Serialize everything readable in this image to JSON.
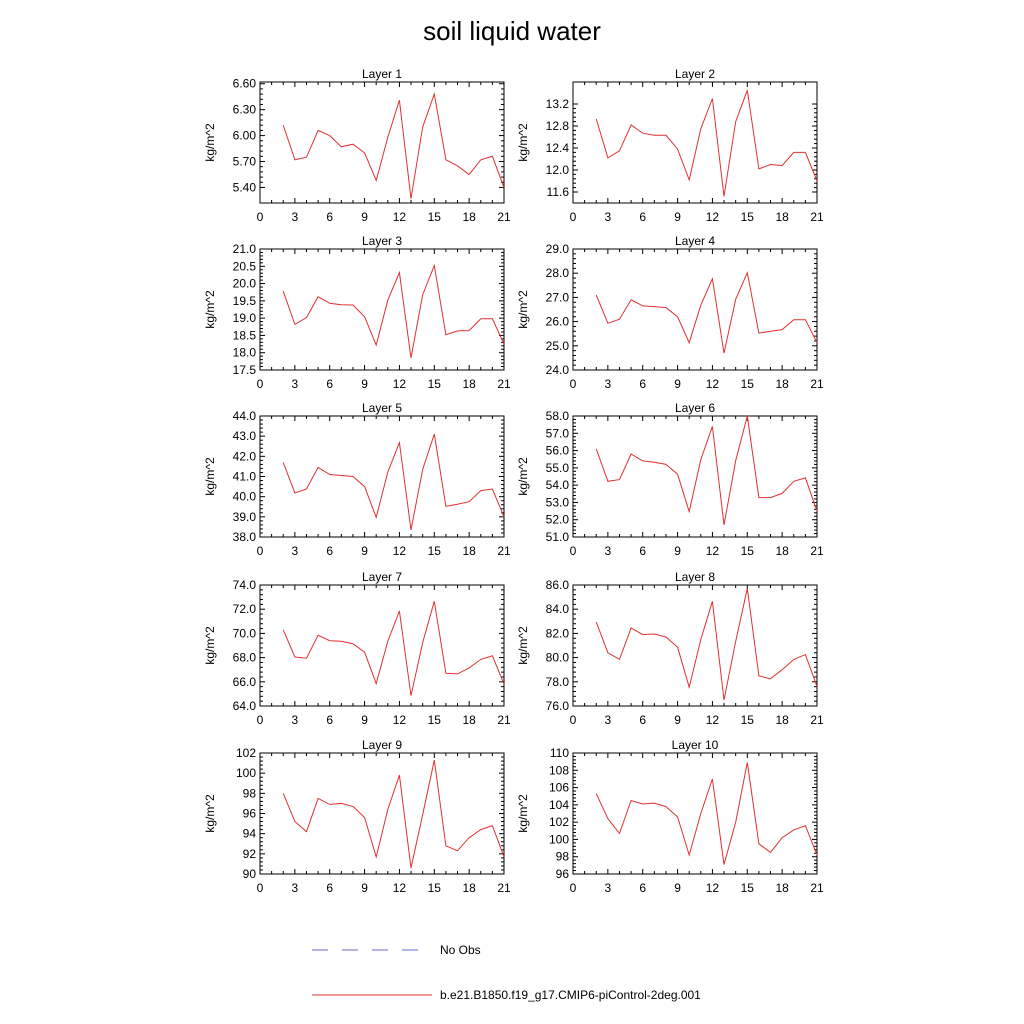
{
  "title": "soil liquid water",
  "legend": [
    {
      "label": "No Obs",
      "color": "#6b6bc8",
      "style": "dashed"
    },
    {
      "label": "b.e21.B1850.f19_g17.CMIP6-piControl-2deg.001",
      "color": "#e03030",
      "style": "solid"
    }
  ],
  "chart_data": [
    {
      "type": "line",
      "title": "Layer 1",
      "ylabel": "kg/m^2",
      "xlim": [
        0,
        21
      ],
      "xticks": [
        0,
        3,
        6,
        9,
        12,
        15,
        18,
        21
      ],
      "ylim": [
        5.22,
        6.62
      ],
      "yticks": [
        5.4,
        5.7,
        6.0,
        6.3,
        6.6
      ],
      "ydec": 2,
      "series": [
        {
          "x": [
            2,
            3,
            4,
            5,
            6,
            7,
            8,
            9,
            10,
            11,
            12,
            13,
            14,
            15,
            16,
            17,
            18,
            19,
            20,
            21
          ],
          "y": [
            6.12,
            5.72,
            5.75,
            6.06,
            6.0,
            5.87,
            5.9,
            5.8,
            5.48,
            5.98,
            6.41,
            5.27,
            6.1,
            6.48,
            5.72,
            5.65,
            5.55,
            5.72,
            5.76,
            5.4
          ]
        }
      ]
    },
    {
      "type": "line",
      "title": "Layer 2",
      "ylabel": "kg/m^2",
      "xlim": [
        0,
        21
      ],
      "xticks": [
        0,
        3,
        6,
        9,
        12,
        15,
        18,
        21
      ],
      "ylim": [
        11.4,
        13.6
      ],
      "yticks": [
        11.6,
        12.0,
        12.4,
        12.8,
        13.2
      ],
      "ydec": 1,
      "series": [
        {
          "x": [
            2,
            3,
            4,
            5,
            6,
            7,
            8,
            9,
            10,
            11,
            12,
            13,
            14,
            15,
            16,
            17,
            18,
            19,
            20,
            21
          ],
          "y": [
            12.93,
            12.22,
            12.35,
            12.82,
            12.67,
            12.63,
            12.63,
            12.38,
            11.82,
            12.75,
            13.3,
            11.52,
            12.88,
            13.45,
            12.02,
            12.1,
            12.08,
            12.32,
            12.32,
            11.8
          ]
        }
      ]
    },
    {
      "type": "line",
      "title": "Layer 3",
      "ylabel": "kg/m^2",
      "xlim": [
        0,
        21
      ],
      "xticks": [
        0,
        3,
        6,
        9,
        12,
        15,
        18,
        21
      ],
      "ylim": [
        17.5,
        21.0
      ],
      "yticks": [
        17.5,
        18.0,
        18.5,
        19.0,
        19.5,
        20.0,
        20.5,
        21.0
      ],
      "ydec": 1,
      "series": [
        {
          "x": [
            2,
            3,
            4,
            5,
            6,
            7,
            8,
            9,
            10,
            11,
            12,
            13,
            14,
            15,
            16,
            17,
            18,
            19,
            20,
            21
          ],
          "y": [
            19.78,
            18.82,
            19.02,
            19.62,
            19.43,
            19.39,
            19.38,
            19.04,
            18.22,
            19.52,
            20.32,
            17.85,
            19.68,
            20.52,
            18.52,
            18.63,
            18.64,
            18.98,
            18.98,
            18.25
          ]
        }
      ]
    },
    {
      "type": "line",
      "title": "Layer 4",
      "ylabel": "kg/m^2",
      "xlim": [
        0,
        21
      ],
      "xticks": [
        0,
        3,
        6,
        9,
        12,
        15,
        18,
        21
      ],
      "ylim": [
        24.0,
        29.0
      ],
      "yticks": [
        24.0,
        25.0,
        26.0,
        27.0,
        28.0,
        29.0
      ],
      "ydec": 1,
      "series": [
        {
          "x": [
            2,
            3,
            4,
            5,
            6,
            7,
            8,
            9,
            10,
            11,
            12,
            13,
            14,
            15,
            16,
            17,
            18,
            19,
            20,
            21
          ],
          "y": [
            27.1,
            25.93,
            26.1,
            26.9,
            26.65,
            26.62,
            26.58,
            26.2,
            25.13,
            26.68,
            27.77,
            24.7,
            26.92,
            28.02,
            25.52,
            25.6,
            25.67,
            26.08,
            26.08,
            25.13
          ]
        }
      ]
    },
    {
      "type": "line",
      "title": "Layer 5",
      "ylabel": "kg/m^2",
      "xlim": [
        0,
        21
      ],
      "xticks": [
        0,
        3,
        6,
        9,
        12,
        15,
        18,
        21
      ],
      "ylim": [
        38.0,
        44.0
      ],
      "yticks": [
        38.0,
        39.0,
        40.0,
        41.0,
        42.0,
        43.0,
        44.0
      ],
      "ydec": 1,
      "series": [
        {
          "x": [
            2,
            3,
            4,
            5,
            6,
            7,
            8,
            9,
            10,
            11,
            12,
            13,
            14,
            15,
            16,
            17,
            18,
            19,
            20,
            21
          ],
          "y": [
            41.7,
            40.18,
            40.38,
            41.45,
            41.1,
            41.05,
            41.0,
            40.5,
            38.97,
            41.22,
            42.68,
            38.35,
            41.35,
            43.1,
            39.52,
            39.62,
            39.75,
            40.3,
            40.38,
            39.0
          ]
        }
      ]
    },
    {
      "type": "line",
      "title": "Layer 6",
      "ylabel": "kg/m^2",
      "xlim": [
        0,
        21
      ],
      "xticks": [
        0,
        3,
        6,
        9,
        12,
        15,
        18,
        21
      ],
      "ylim": [
        51.0,
        58.0
      ],
      "yticks": [
        51.0,
        52.0,
        53.0,
        54.0,
        55.0,
        56.0,
        57.0,
        58.0
      ],
      "ydec": 1,
      "series": [
        {
          "x": [
            2,
            3,
            4,
            5,
            6,
            7,
            8,
            9,
            10,
            11,
            12,
            13,
            14,
            15,
            16,
            17,
            18,
            19,
            20,
            21
          ],
          "y": [
            56.1,
            54.22,
            54.32,
            55.8,
            55.4,
            55.32,
            55.2,
            54.63,
            52.47,
            55.48,
            57.4,
            51.7,
            55.42,
            58.0,
            53.28,
            53.28,
            53.52,
            54.22,
            54.42,
            52.5
          ]
        }
      ]
    },
    {
      "type": "line",
      "title": "Layer 7",
      "ylabel": "kg/m^2",
      "xlim": [
        0,
        21
      ],
      "xticks": [
        0,
        3,
        6,
        9,
        12,
        15,
        18,
        21
      ],
      "ylim": [
        64.0,
        74.0
      ],
      "yticks": [
        64.0,
        66.0,
        68.0,
        70.0,
        72.0,
        74.0
      ],
      "ydec": 1,
      "series": [
        {
          "x": [
            2,
            3,
            4,
            5,
            6,
            7,
            8,
            9,
            10,
            11,
            12,
            13,
            14,
            15,
            16,
            17,
            18,
            19,
            20,
            21
          ],
          "y": [
            70.3,
            68.05,
            67.95,
            69.85,
            69.4,
            69.35,
            69.15,
            68.45,
            65.85,
            69.35,
            71.85,
            64.85,
            69.25,
            72.65,
            66.7,
            66.65,
            67.15,
            67.85,
            68.15,
            65.8
          ]
        }
      ]
    },
    {
      "type": "line",
      "title": "Layer 8",
      "ylabel": "kg/m^2",
      "xlim": [
        0,
        21
      ],
      "xticks": [
        0,
        3,
        6,
        9,
        12,
        15,
        18,
        21
      ],
      "ylim": [
        76.0,
        86.0
      ],
      "yticks": [
        76.0,
        78.0,
        80.0,
        82.0,
        84.0,
        86.0
      ],
      "ydec": 1,
      "series": [
        {
          "x": [
            2,
            3,
            4,
            5,
            6,
            7,
            8,
            9,
            10,
            11,
            12,
            13,
            14,
            15,
            16,
            17,
            18,
            19,
            20,
            21
          ],
          "y": [
            82.95,
            80.4,
            79.85,
            82.45,
            81.9,
            81.95,
            81.7,
            80.85,
            77.55,
            81.5,
            84.65,
            76.5,
            81.35,
            85.7,
            78.5,
            78.25,
            79.0,
            79.85,
            80.25,
            77.6
          ]
        }
      ]
    },
    {
      "type": "line",
      "title": "Layer 9",
      "ylabel": "kg/m^2",
      "xlim": [
        0,
        21
      ],
      "xticks": [
        0,
        3,
        6,
        9,
        12,
        15,
        18,
        21
      ],
      "ylim": [
        90,
        102
      ],
      "yticks": [
        90,
        92,
        94,
        96,
        98,
        100,
        102
      ],
      "ydec": 0,
      "series": [
        {
          "x": [
            2,
            3,
            4,
            5,
            6,
            7,
            8,
            9,
            10,
            11,
            12,
            13,
            14,
            15,
            16,
            17,
            18,
            19,
            20,
            21
          ],
          "y": [
            98.0,
            95.2,
            94.2,
            97.5,
            96.9,
            97.0,
            96.7,
            95.6,
            91.7,
            96.4,
            99.8,
            90.6,
            95.9,
            101.3,
            92.8,
            92.3,
            93.6,
            94.4,
            94.8,
            91.7
          ]
        }
      ]
    },
    {
      "type": "line",
      "title": "Layer 10",
      "ylabel": "kg/m^2",
      "xlim": [
        0,
        21
      ],
      "xticks": [
        0,
        3,
        6,
        9,
        12,
        15,
        18,
        21
      ],
      "ylim": [
        96,
        110
      ],
      "yticks": [
        96,
        98,
        100,
        102,
        104,
        106,
        108,
        110
      ],
      "ydec": 0,
      "series": [
        {
          "x": [
            2,
            3,
            4,
            5,
            6,
            7,
            8,
            9,
            10,
            11,
            12,
            13,
            14,
            15,
            16,
            17,
            18,
            19,
            20,
            21
          ],
          "y": [
            105.3,
            102.4,
            100.7,
            104.5,
            104.1,
            104.2,
            103.8,
            102.6,
            98.2,
            103.0,
            107.0,
            97.1,
            102.0,
            108.9,
            99.5,
            98.5,
            100.2,
            101.1,
            101.6,
            98.2
          ]
        }
      ]
    }
  ]
}
